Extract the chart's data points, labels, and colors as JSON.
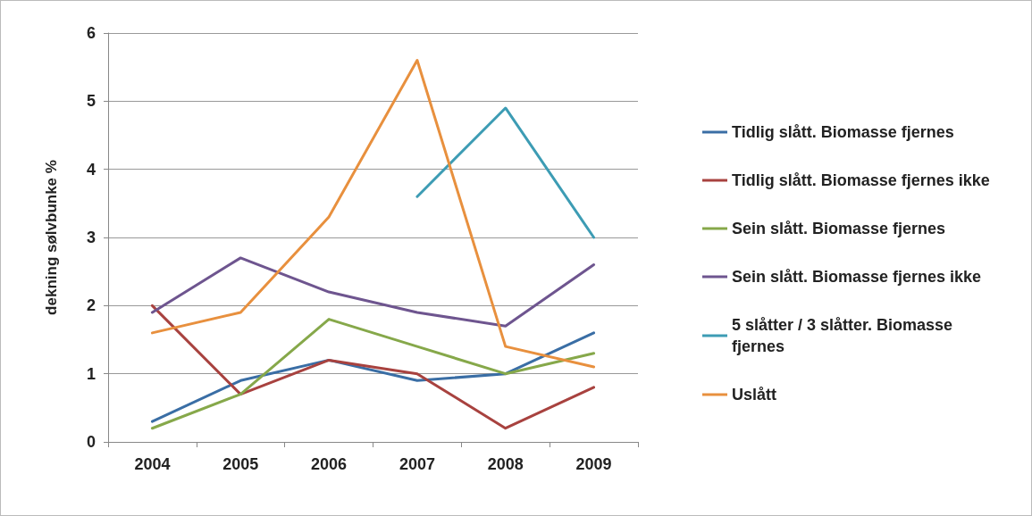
{
  "chart_data": {
    "type": "line",
    "ylabel": "dekning sølvbunke %",
    "categories": [
      "2004",
      "2005",
      "2006",
      "2007",
      "2008",
      "2009"
    ],
    "series": [
      {
        "name": "Tidlig slått. Biomasse fjernes",
        "color": "#3a6ea5",
        "values": [
          0.3,
          0.9,
          1.2,
          0.9,
          1.0,
          1.6
        ]
      },
      {
        "name": "Tidlig slått. Biomasse fjernes ikke",
        "color": "#a8423f",
        "values": [
          2.0,
          0.7,
          1.2,
          1.0,
          0.2,
          0.8
        ]
      },
      {
        "name": "Sein slått. Biomasse fjernes",
        "color": "#86a84a",
        "values": [
          0.2,
          0.7,
          1.8,
          1.4,
          1.0,
          1.3
        ]
      },
      {
        "name": "Sein slått. Biomasse fjernes ikke",
        "color": "#6e558f",
        "values": [
          1.9,
          2.7,
          2.2,
          1.9,
          1.7,
          2.6
        ]
      },
      {
        "name": "5 slåtter / 3 slåtter. Biomasse fjernes",
        "color": "#3d9cb4",
        "values": [
          null,
          null,
          null,
          3.6,
          4.9,
          3.0
        ]
      },
      {
        "name": "Uslått",
        "color": "#e8903e",
        "values": [
          1.6,
          1.9,
          3.3,
          5.6,
          1.4,
          1.1
        ]
      }
    ],
    "ylim": [
      0,
      6
    ],
    "yticks": [
      0,
      1,
      2,
      3,
      4,
      5,
      6
    ],
    "grid": "y",
    "legend": "right",
    "marker": "none",
    "line_style": "solid"
  }
}
